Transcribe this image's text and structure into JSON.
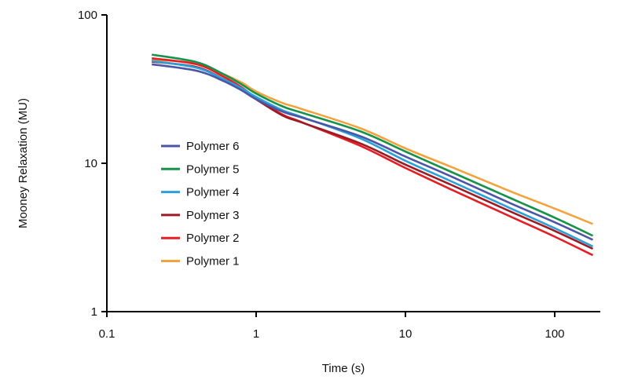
{
  "chart_data": {
    "type": "line",
    "xlabel": "Time (s)",
    "ylabel": "Mooney Relaxation (MU)",
    "xscale": "log",
    "yscale": "log",
    "xlim": [
      0.1,
      180
    ],
    "ylim": [
      1,
      100
    ],
    "xticks": [
      {
        "value": 0.1,
        "label": "0.1"
      },
      {
        "value": 1,
        "label": "1"
      },
      {
        "value": 10,
        "label": "10"
      },
      {
        "value": 100,
        "label": "100"
      }
    ],
    "yticks": [
      {
        "value": 1,
        "label": "1"
      },
      {
        "value": 10,
        "label": "10"
      },
      {
        "value": 100,
        "label": "100"
      }
    ],
    "grid": false,
    "legend_position": "center-left",
    "series": [
      {
        "name": "Polymer 6",
        "color": "#4b56a6",
        "x": [
          0.2,
          0.4,
          0.6,
          0.8,
          1.0,
          1.5,
          2,
          5,
          10,
          20,
          50,
          100,
          180
        ],
        "y": [
          46.5,
          42,
          36,
          31,
          27,
          22.3,
          20.4,
          15.2,
          11.1,
          8.2,
          5.4,
          4.0,
          3.05
        ]
      },
      {
        "name": "Polymer 5",
        "color": "#16924a",
        "x": [
          0.2,
          0.4,
          0.6,
          0.8,
          1.0,
          1.5,
          2,
          5,
          10,
          20,
          50,
          100,
          180
        ],
        "y": [
          54,
          48,
          40,
          34,
          29.5,
          24.2,
          22.0,
          16.4,
          12.0,
          8.8,
          5.85,
          4.3,
          3.25
        ]
      },
      {
        "name": "Polymer 4",
        "color": "#2b9fd8",
        "x": [
          0.2,
          0.4,
          0.6,
          0.8,
          1.0,
          1.5,
          2,
          5,
          10,
          20,
          50,
          100,
          180
        ],
        "y": [
          49,
          44,
          37,
          32,
          28,
          22.8,
          20.6,
          14.7,
          10.4,
          7.6,
          5.0,
          3.65,
          2.75
        ]
      },
      {
        "name": "Polymer 3",
        "color": "#9b1c24",
        "x": [
          0.2,
          0.4,
          0.6,
          0.8,
          1.0,
          1.5,
          2,
          5,
          10,
          20,
          50,
          100,
          180
        ],
        "y": [
          48.5,
          44.5,
          37,
          31.5,
          27,
          21.0,
          18.9,
          13.6,
          9.8,
          7.2,
          4.75,
          3.5,
          2.65
        ]
      },
      {
        "name": "Polymer 2",
        "color": "#e31e24",
        "x": [
          0.2,
          0.4,
          0.6,
          0.8,
          1.0,
          1.5,
          2,
          5,
          10,
          20,
          50,
          100,
          180
        ],
        "y": [
          51,
          46.5,
          38.5,
          32.5,
          27.5,
          21.3,
          19.0,
          13.1,
          9.3,
          6.7,
          4.4,
          3.2,
          2.4
        ]
      },
      {
        "name": "Polymer 1",
        "color": "#f4a23e",
        "x": [
          0.2,
          0.4,
          0.6,
          0.8,
          1.0,
          1.5,
          2,
          5,
          10,
          20,
          50,
          100,
          180
        ],
        "y": [
          50,
          47,
          40,
          35,
          30.5,
          25.5,
          23.3,
          17.2,
          12.6,
          9.5,
          6.5,
          4.95,
          3.9
        ]
      }
    ]
  }
}
